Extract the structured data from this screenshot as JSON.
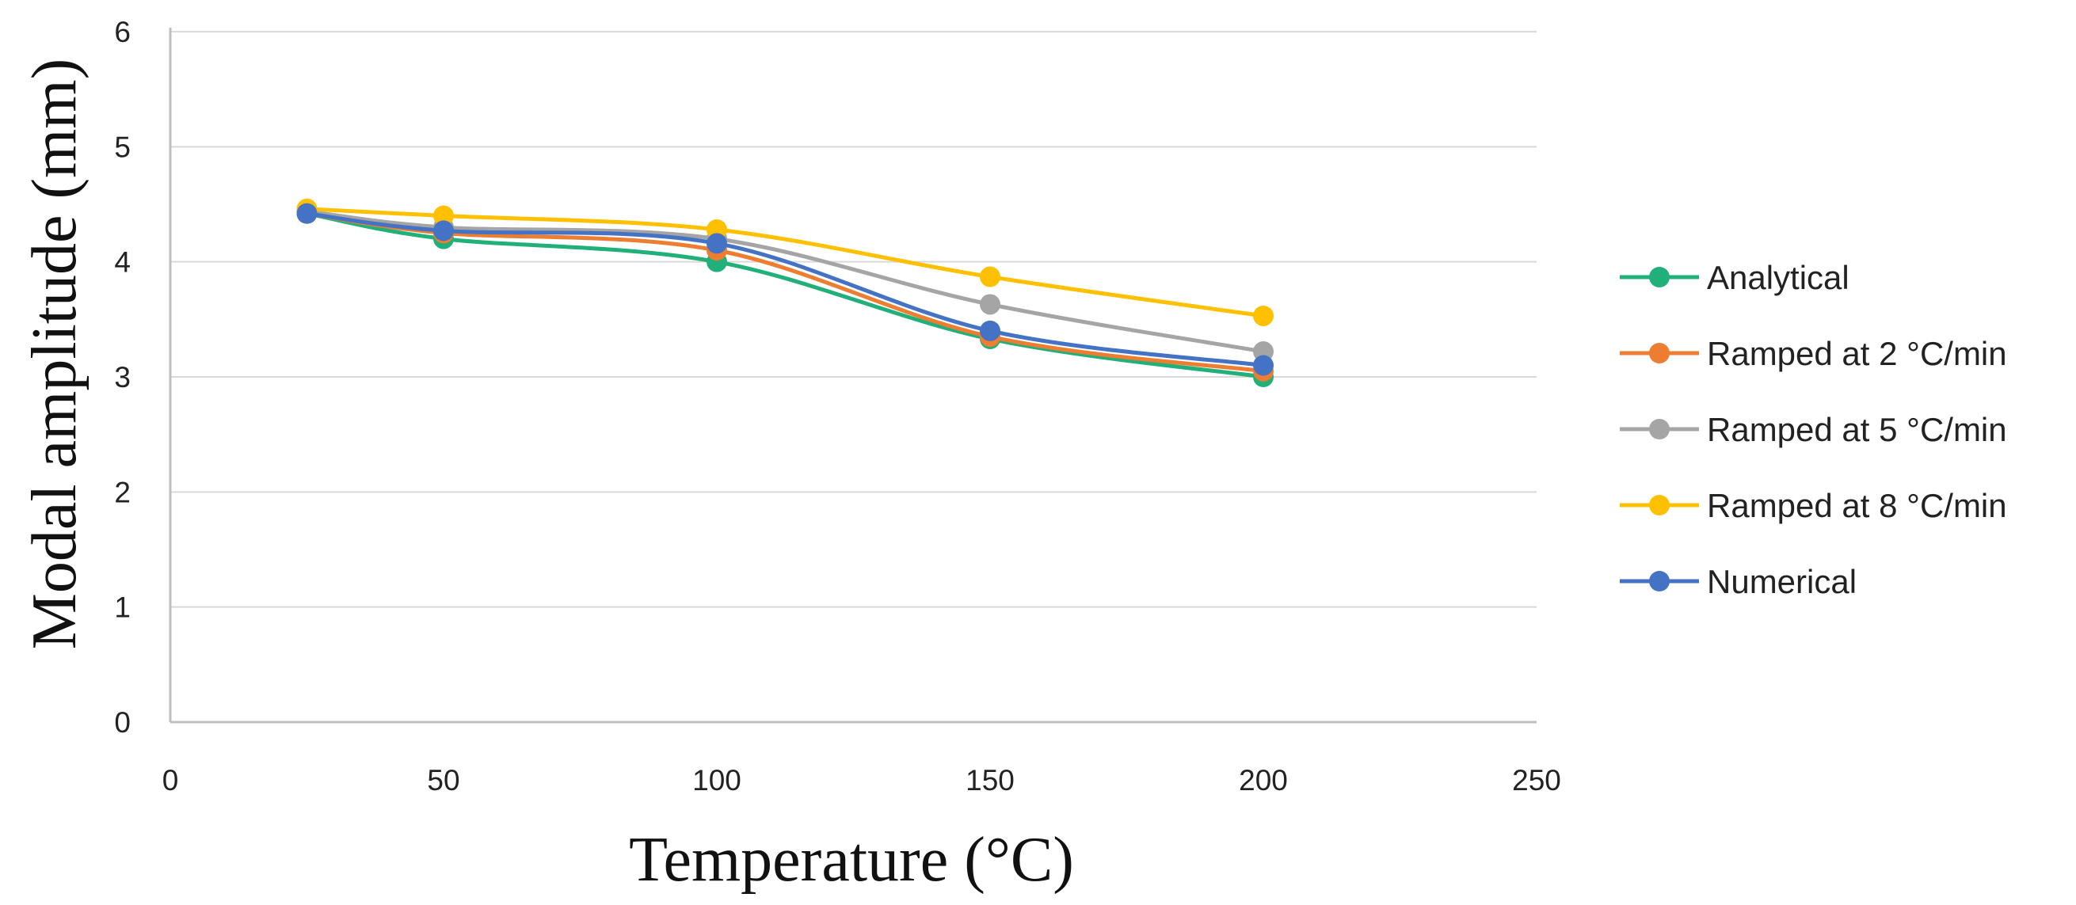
{
  "chart_data": {
    "type": "line",
    "title": "",
    "xlabel": "Temperature (°C)",
    "ylabel": "Modal amplitude (mm)",
    "xlim": [
      0,
      250
    ],
    "ylim": [
      0,
      6
    ],
    "xticks": [
      "0",
      "50",
      "100",
      "150",
      "200",
      "250"
    ],
    "yticks": [
      "0",
      "1",
      "2",
      "3",
      "4",
      "5",
      "6"
    ],
    "grid": "horizontal",
    "legend_position": "right",
    "x": [
      25,
      50,
      100,
      150,
      200
    ],
    "series": [
      {
        "name": "Analytical",
        "color": "#21B07A",
        "values": [
          4.42,
          4.2,
          4.0,
          3.33,
          3.0
        ]
      },
      {
        "name": "Ramped at 2 °C/min",
        "color": "#ED7D31",
        "values": [
          4.42,
          4.25,
          4.1,
          3.35,
          3.05
        ]
      },
      {
        "name": "Ramped at 5 °C/min",
        "color": "#A5A5A5",
        "values": [
          4.44,
          4.3,
          4.2,
          3.63,
          3.22
        ]
      },
      {
        "name": "Ramped at 8 °C/min",
        "color": "#FFC000",
        "values": [
          4.46,
          4.4,
          4.28,
          3.87,
          3.53
        ]
      },
      {
        "name": "Numerical",
        "color": "#4472C4",
        "values": [
          4.42,
          4.27,
          4.16,
          3.4,
          3.1
        ]
      }
    ]
  }
}
